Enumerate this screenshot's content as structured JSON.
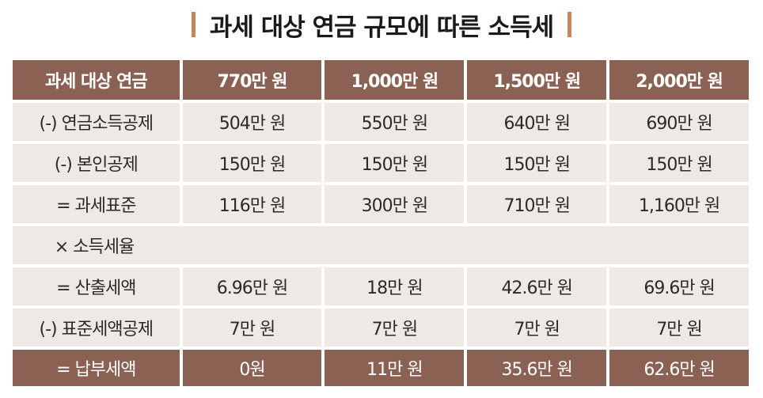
{
  "title": "과세 대상 연금 규모에 따른 소득세",
  "colors": {
    "accent_bar": "#c8855a",
    "header_bg": "#8a6152",
    "row_bg": "#efe9e6"
  },
  "table": {
    "headers": [
      "과세 대상 연금",
      "770만 원",
      "1,000만 원",
      "1,500만 원",
      "2,000만 원"
    ],
    "rows": [
      {
        "label": "(-) 연금소득공제",
        "values": [
          "504만 원",
          "550만 원",
          "640만 원",
          "690만 원"
        ]
      },
      {
        "label": "(-) 본인공제",
        "values": [
          "150만 원",
          "150만 원",
          "150만 원",
          "150만 원"
        ]
      },
      {
        "label": "= 과세표준",
        "values": [
          "116만 원",
          "300만 원",
          "710만 원",
          "1,160만 원"
        ]
      },
      {
        "label": "× 소득세율"
      },
      {
        "label": "= 산출세액",
        "values": [
          "6.96만 원",
          "18만 원",
          "42.6만 원",
          "69.6만 원"
        ]
      },
      {
        "label": "(-) 표준세액공제",
        "values": [
          "7만 원",
          "7만 원",
          "7만 원",
          "7만 원"
        ]
      }
    ],
    "footer": {
      "label": "= 납부세액",
      "values": [
        "0원",
        "11만 원",
        "35.6만 원",
        "62.6만 원"
      ]
    }
  }
}
